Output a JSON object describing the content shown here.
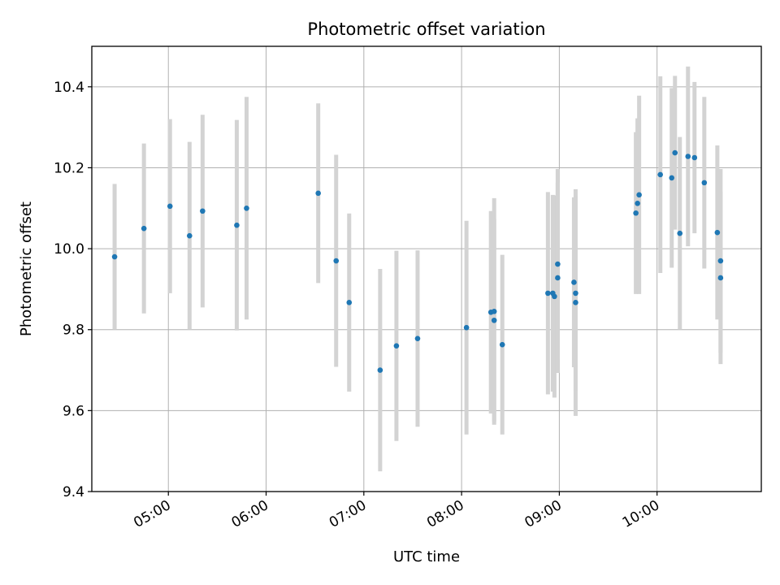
{
  "chart_data": {
    "type": "scatter",
    "title": "Photometric offset variation",
    "xlabel": "UTC time",
    "ylabel": "Photometric offset",
    "ylim": [
      9.4,
      10.5
    ],
    "xlim": [
      "04:13",
      "11:04"
    ],
    "y_ticks": [
      9.4,
      9.6,
      9.8,
      10.0,
      10.2,
      10.4
    ],
    "x_ticks": [
      "05:00",
      "06:00",
      "07:00",
      "08:00",
      "09:00",
      "10:00"
    ],
    "grid": true,
    "error_bar_color": "#d3d3d3",
    "marker_color": "#1f77b4",
    "points": [
      {
        "x": "04:27",
        "y": 9.98,
        "err": 0.18
      },
      {
        "x": "04:45",
        "y": 10.05,
        "err": 0.21
      },
      {
        "x": "05:01",
        "y": 10.105,
        "err": 0.215
      },
      {
        "x": "05:13",
        "y": 10.032,
        "err": 0.232
      },
      {
        "x": "05:21",
        "y": 10.093,
        "err": 0.238
      },
      {
        "x": "05:42",
        "y": 10.058,
        "err": 0.26
      },
      {
        "x": "05:48",
        "y": 10.1,
        "err": 0.275
      },
      {
        "x": "06:32",
        "y": 10.137,
        "err": 0.222
      },
      {
        "x": "06:43",
        "y": 9.97,
        "err": 0.262
      },
      {
        "x": "06:51",
        "y": 9.867,
        "err": 0.22
      },
      {
        "x": "07:10",
        "y": 9.7,
        "err": 0.25
      },
      {
        "x": "07:20",
        "y": 9.76,
        "err": 0.235
      },
      {
        "x": "07:33",
        "y": 9.778,
        "err": 0.218
      },
      {
        "x": "08:03",
        "y": 9.805,
        "err": 0.264
      },
      {
        "x": "08:18",
        "y": 9.843,
        "err": 0.25
      },
      {
        "x": "08:20",
        "y": 9.845,
        "err": 0.28
      },
      {
        "x": "08:20",
        "y": 9.823,
        "err": 0.25
      },
      {
        "x": "08:25",
        "y": 9.763,
        "err": 0.222
      },
      {
        "x": "08:53",
        "y": 9.89,
        "err": 0.25
      },
      {
        "x": "08:56",
        "y": 9.89,
        "err": 0.243
      },
      {
        "x": "08:57",
        "y": 9.882,
        "err": 0.25
      },
      {
        "x": "08:59",
        "y": 9.962,
        "err": 0.235
      },
      {
        "x": "08:59",
        "y": 9.928,
        "err": 0.235
      },
      {
        "x": "09:09",
        "y": 9.917,
        "err": 0.21
      },
      {
        "x": "09:10",
        "y": 9.89,
        "err": 0.24
      },
      {
        "x": "09:10",
        "y": 9.867,
        "err": 0.28
      },
      {
        "x": "09:47",
        "y": 10.088,
        "err": 0.2
      },
      {
        "x": "09:48",
        "y": 10.112,
        "err": 0.21
      },
      {
        "x": "09:49",
        "y": 10.133,
        "err": 0.245
      },
      {
        "x": "10:02",
        "y": 10.183,
        "err": 0.243
      },
      {
        "x": "10:09",
        "y": 10.175,
        "err": 0.222
      },
      {
        "x": "10:11",
        "y": 10.237,
        "err": 0.19
      },
      {
        "x": "10:14",
        "y": 10.038,
        "err": 0.238
      },
      {
        "x": "10:19",
        "y": 10.228,
        "err": 0.222
      },
      {
        "x": "10:23",
        "y": 10.225,
        "err": 0.187
      },
      {
        "x": "10:29",
        "y": 10.163,
        "err": 0.212
      },
      {
        "x": "10:37",
        "y": 10.04,
        "err": 0.215
      },
      {
        "x": "10:39",
        "y": 9.97,
        "err": 0.227
      },
      {
        "x": "10:39",
        "y": 9.928,
        "err": 0.213
      }
    ]
  }
}
